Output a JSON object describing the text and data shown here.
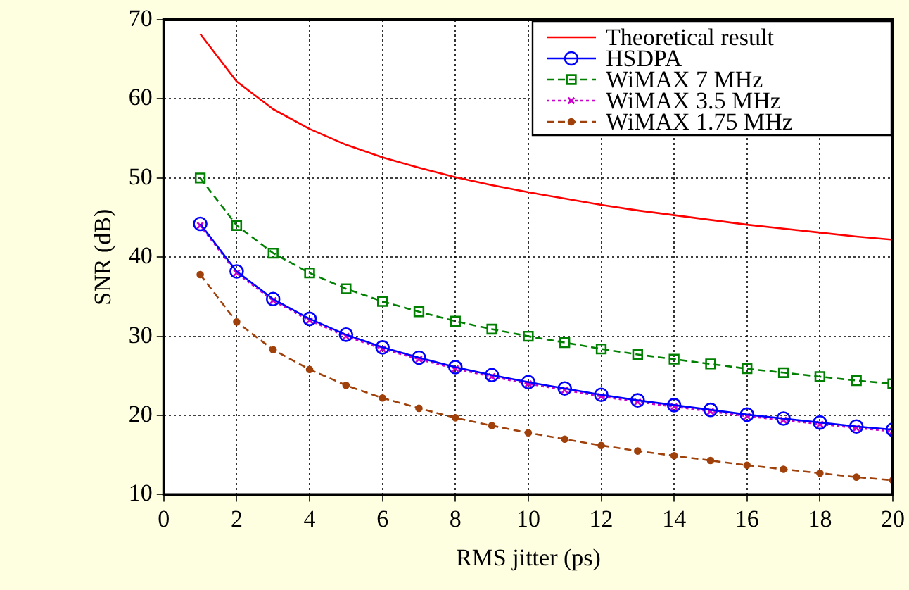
{
  "chart_data": {
    "type": "line",
    "xlabel": "RMS jitter (ps)",
    "ylabel": "SNR (dB)",
    "x": [
      1,
      2,
      3,
      4,
      5,
      6,
      7,
      8,
      9,
      10,
      11,
      12,
      13,
      14,
      15,
      16,
      17,
      18,
      19,
      20
    ],
    "xlim": [
      0,
      20
    ],
    "xticks": [
      0,
      2,
      4,
      6,
      8,
      10,
      12,
      14,
      16,
      18,
      20
    ],
    "ylim": [
      10,
      70
    ],
    "yticks": [
      10,
      20,
      30,
      40,
      50,
      60,
      70
    ],
    "grid": true,
    "legend": "top right",
    "series": [
      {
        "name": "Theoretical result",
        "color": "#ff0000",
        "marker": "none",
        "line_style": "solid",
        "values": [
          68.2,
          62.2,
          58.7,
          56.2,
          54.2,
          52.6,
          51.3,
          50.1,
          49.1,
          48.2,
          47.4,
          46.6,
          45.9,
          45.3,
          44.7,
          44.1,
          43.6,
          43.1,
          42.6,
          42.2
        ]
      },
      {
        "name": "HSDPA",
        "color": "#0000ff",
        "marker": "circle",
        "line_style": "solid",
        "values": [
          44.2,
          38.2,
          34.7,
          32.2,
          30.2,
          28.6,
          27.3,
          26.1,
          25.1,
          24.2,
          23.4,
          22.6,
          21.9,
          21.3,
          20.7,
          20.1,
          19.6,
          19.1,
          18.6,
          18.2
        ]
      },
      {
        "name": "WiMAX 7 MHz",
        "color": "#008000",
        "marker": "square",
        "line_style": "dashed",
        "values": [
          50.0,
          44.0,
          40.5,
          38.0,
          36.0,
          34.4,
          33.1,
          31.9,
          30.9,
          30.0,
          29.2,
          28.4,
          27.7,
          27.1,
          26.5,
          25.9,
          25.4,
          24.9,
          24.4,
          24.0
        ]
      },
      {
        "name": "WiMAX 3.5 MHz",
        "color": "#cc00cc",
        "marker": "cross",
        "line_style": "dotted",
        "values": [
          44.0,
          38.0,
          34.5,
          32.0,
          30.0,
          28.4,
          27.1,
          25.9,
          24.9,
          24.0,
          23.2,
          22.4,
          21.7,
          21.1,
          20.5,
          19.9,
          19.4,
          18.9,
          18.4,
          18.0
        ]
      },
      {
        "name": "WiMAX 1.75 MHz",
        "color": "#a0400a",
        "marker": "circle",
        "line_style": "dashed",
        "values": [
          37.8,
          31.8,
          28.3,
          25.8,
          23.8,
          22.2,
          20.9,
          19.7,
          18.7,
          17.8,
          17.0,
          16.2,
          15.5,
          14.9,
          14.3,
          13.7,
          13.2,
          12.7,
          12.2,
          11.8
        ]
      }
    ]
  }
}
